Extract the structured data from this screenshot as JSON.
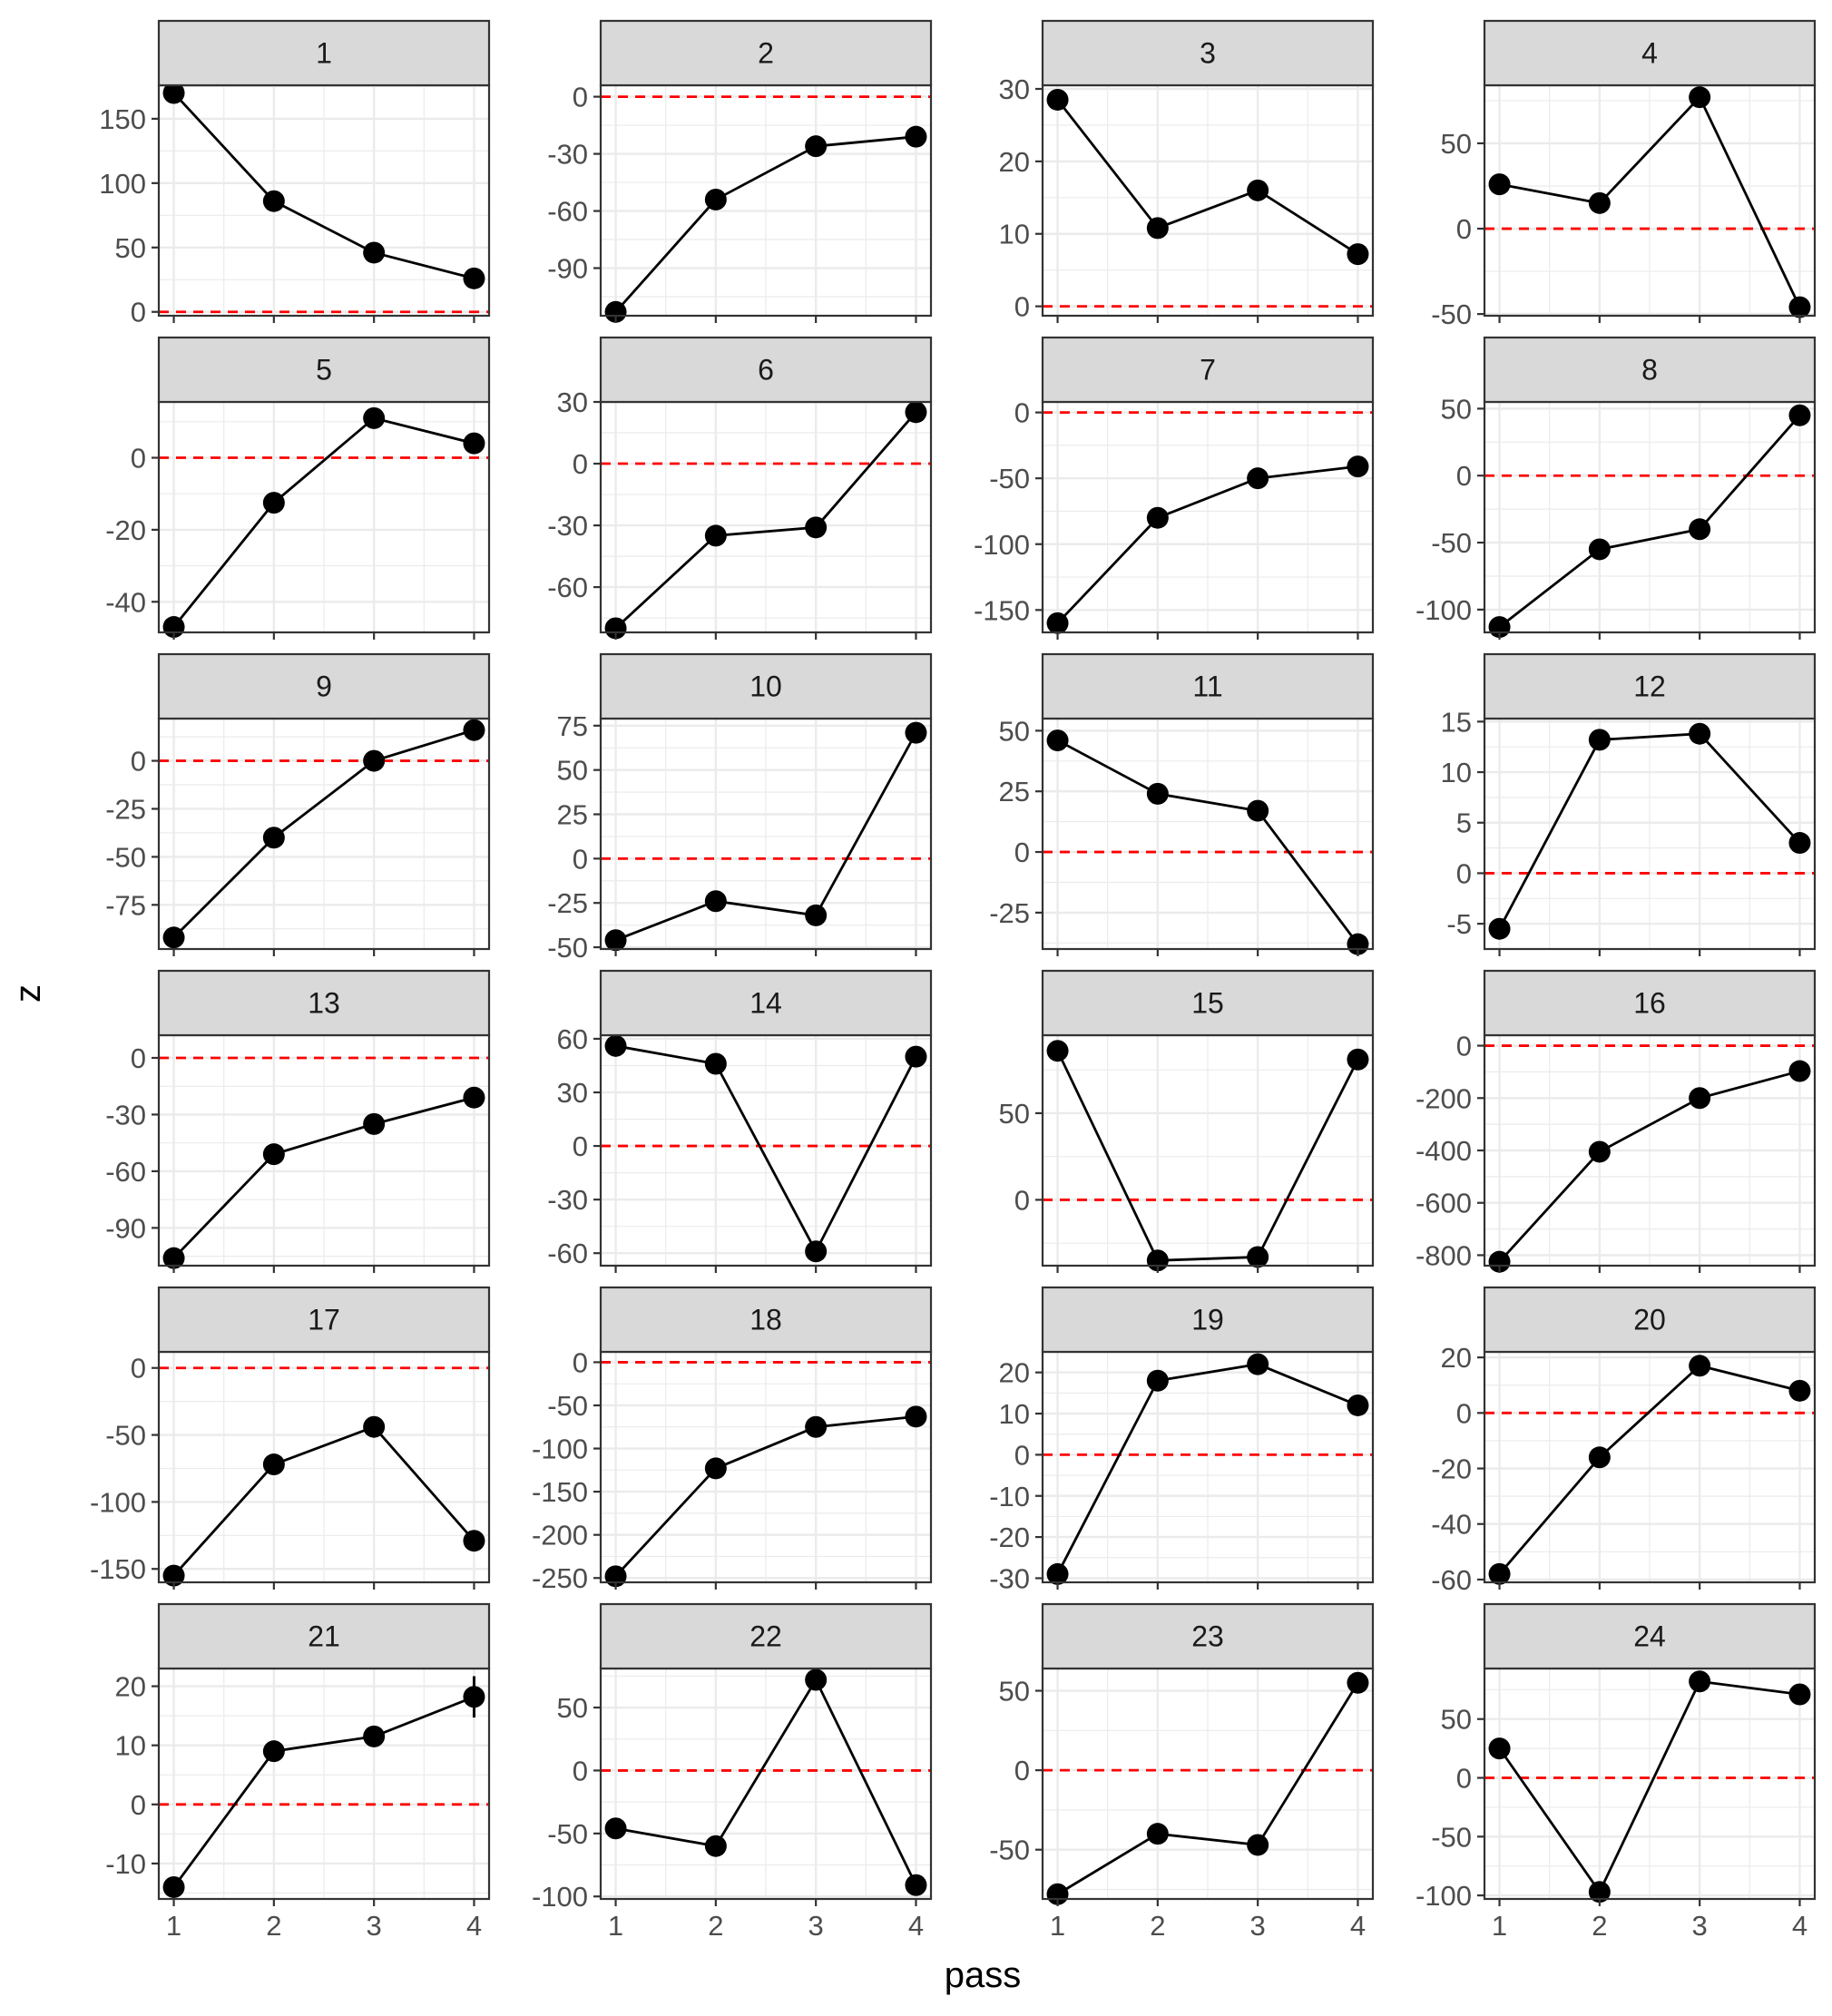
{
  "chart_data": {
    "type": "line",
    "facet_layout": "4 columns x 6 rows",
    "xlabel": "pass",
    "ylabel": "z",
    "x": [
      1,
      2,
      3,
      4
    ],
    "x_ticks": [
      "1",
      "2",
      "3",
      "4"
    ],
    "xlim": [
      0.85,
      4.15
    ],
    "reference_line": {
      "y": 0,
      "style": "dashed",
      "color": "#ff0000"
    },
    "colors": {
      "line": "#000000",
      "point": "#000000",
      "strip_bg": "#d9d9d9",
      "grid": "#ebebeb",
      "border": "#333333"
    },
    "grid": true,
    "facets": [
      {
        "label": "1",
        "values": [
          170,
          86,
          46,
          26
        ],
        "ylim": [
          -3,
          176
        ],
        "yticks": [
          "0",
          "50",
          "100",
          "150"
        ],
        "ytick_values": [
          0,
          50,
          100,
          150
        ]
      },
      {
        "label": "2",
        "values": [
          -113,
          -54,
          -26,
          -21
        ],
        "ylim": [
          -115,
          6
        ],
        "yticks": [
          "0",
          "-30",
          "-60",
          "-90"
        ],
        "ytick_values": [
          0,
          -30,
          -60,
          -90
        ]
      },
      {
        "label": "3",
        "values": [
          28.5,
          10.8,
          16,
          7.2
        ],
        "ylim": [
          -1.3,
          30.5
        ],
        "yticks": [
          "0",
          "10",
          "20",
          "30"
        ],
        "ytick_values": [
          0,
          10,
          20,
          30
        ]
      },
      {
        "label": "4",
        "values": [
          26,
          15,
          77,
          -46
        ],
        "ylim": [
          -51,
          84
        ],
        "yticks": [
          "50",
          "0",
          "-50"
        ],
        "ytick_values": [
          50,
          0,
          -50
        ]
      },
      {
        "label": "5",
        "values": [
          -47,
          -12.5,
          11,
          4
        ],
        "ylim": [
          -48.5,
          15.5
        ],
        "yticks": [
          "0",
          "-20",
          "-40"
        ],
        "ytick_values": [
          0,
          -20,
          -40
        ]
      },
      {
        "label": "6",
        "values": [
          -80,
          -35,
          -31,
          25
        ],
        "ylim": [
          -82,
          30
        ],
        "yticks": [
          "30",
          "0",
          "-30",
          "-60"
        ],
        "ytick_values": [
          30,
          0,
          -30,
          -60
        ]
      },
      {
        "label": "7",
        "values": [
          -160,
          -80,
          -50,
          -41
        ],
        "ylim": [
          -167,
          8
        ],
        "yticks": [
          "0",
          "-50",
          "-100",
          "-150"
        ],
        "ytick_values": [
          0,
          -50,
          -100,
          -150
        ]
      },
      {
        "label": "8",
        "values": [
          -113,
          -55,
          -40,
          45
        ],
        "ylim": [
          -117,
          55
        ],
        "yticks": [
          "50",
          "0",
          "-50",
          "-100"
        ],
        "ytick_values": [
          50,
          0,
          -50,
          -100
        ]
      },
      {
        "label": "9",
        "values": [
          -92,
          -40,
          0,
          16
        ],
        "ylim": [
          -98,
          22
        ],
        "yticks": [
          "0",
          "-25",
          "-50",
          "-75"
        ],
        "ytick_values": [
          0,
          -25,
          -50,
          -75
        ]
      },
      {
        "label": "10",
        "values": [
          -46,
          -24,
          -32,
          71
        ],
        "ylim": [
          -51,
          79
        ],
        "yticks": [
          "75",
          "50",
          "25",
          "0",
          "-25",
          "-50"
        ],
        "ytick_values": [
          75,
          50,
          25,
          0,
          -25,
          -50
        ]
      },
      {
        "label": "11",
        "values": [
          46,
          24,
          17,
          -38
        ],
        "ylim": [
          -40,
          55
        ],
        "yticks": [
          "50",
          "25",
          "0",
          "-25"
        ],
        "ytick_values": [
          50,
          25,
          0,
          -25
        ]
      },
      {
        "label": "12",
        "values": [
          -5.5,
          13.2,
          13.8,
          3
        ],
        "ylim": [
          -7.5,
          15.3
        ],
        "yticks": [
          "15",
          "10",
          "5",
          "0",
          "-5"
        ],
        "ytick_values": [
          15,
          10,
          5,
          0,
          -5
        ]
      },
      {
        "label": "13",
        "values": [
          -106,
          -51,
          -35,
          -21
        ],
        "ylim": [
          -110,
          12
        ],
        "yticks": [
          "0",
          "-30",
          "-60",
          "-90"
        ],
        "ytick_values": [
          0,
          -30,
          -60,
          -90
        ]
      },
      {
        "label": "14",
        "values": [
          56,
          46,
          -59,
          50
        ],
        "ylim": [
          -67,
          62
        ],
        "yticks": [
          "60",
          "30",
          "0",
          "-30",
          "-60"
        ],
        "ytick_values": [
          60,
          30,
          0,
          -30,
          -60
        ]
      },
      {
        "label": "15",
        "values": [
          86,
          -35,
          -33,
          81
        ],
        "ylim": [
          -38,
          95
        ],
        "yticks": [
          "50",
          "0"
        ],
        "ytick_values": [
          50,
          0
        ]
      },
      {
        "label": "16",
        "values": [
          -825,
          -405,
          -200,
          -97
        ],
        "ylim": [
          -840,
          40
        ],
        "yticks": [
          "0",
          "-200",
          "-400",
          "-600",
          "-800"
        ],
        "ytick_values": [
          0,
          -200,
          -400,
          -600,
          -800
        ]
      },
      {
        "label": "17",
        "values": [
          -155,
          -72,
          -44,
          -129
        ],
        "ylim": [
          -160,
          12
        ],
        "yticks": [
          "0",
          "-50",
          "-100",
          "-150"
        ],
        "ytick_values": [
          0,
          -50,
          -100,
          -150
        ]
      },
      {
        "label": "18",
        "values": [
          -248,
          -123,
          -75,
          -63
        ],
        "ylim": [
          -255,
          12
        ],
        "yticks": [
          "0",
          "-50",
          "-100",
          "-150",
          "-200",
          "-250"
        ],
        "ytick_values": [
          0,
          -50,
          -100,
          -150,
          -200,
          -250
        ]
      },
      {
        "label": "19",
        "values": [
          -29,
          18,
          22,
          12
        ],
        "ylim": [
          -31,
          25
        ],
        "yticks": [
          "20",
          "10",
          "0",
          "-10",
          "-20",
          "-30"
        ],
        "ytick_values": [
          20,
          10,
          0,
          -10,
          -20,
          -30
        ]
      },
      {
        "label": "20",
        "values": [
          -58,
          -16,
          17,
          8
        ],
        "ylim": [
          -61,
          22
        ],
        "yticks": [
          "20",
          "0",
          "-20",
          "-40",
          "-60"
        ],
        "ytick_values": [
          20,
          0,
          -20,
          -40,
          -60
        ]
      },
      {
        "label": "21",
        "values": [
          -14,
          9,
          11.5,
          18.2
        ],
        "ylim": [
          -16,
          23
        ],
        "yticks": [
          "20",
          "10",
          "0",
          "-10"
        ],
        "ytick_values": [
          20,
          10,
          0,
          -10
        ],
        "error_bars": [
          null,
          null,
          1.5,
          3.5
        ]
      },
      {
        "label": "22",
        "values": [
          -46,
          -60,
          72,
          -91
        ],
        "ylim": [
          -102,
          81
        ],
        "yticks": [
          "50",
          "0",
          "-50",
          "-100"
        ],
        "ytick_values": [
          50,
          0,
          -50,
          -100
        ]
      },
      {
        "label": "23",
        "values": [
          -78,
          -40,
          -47,
          55
        ],
        "ylim": [
          -81,
          64
        ],
        "yticks": [
          "50",
          "0",
          "-50"
        ],
        "ytick_values": [
          50,
          0,
          -50
        ]
      },
      {
        "label": "24",
        "values": [
          25,
          -97,
          82,
          71
        ],
        "ylim": [
          -103,
          93
        ],
        "yticks": [
          "50",
          "0",
          "-50",
          "-100"
        ],
        "ytick_values": [
          50,
          0,
          -50,
          -100
        ]
      }
    ]
  }
}
